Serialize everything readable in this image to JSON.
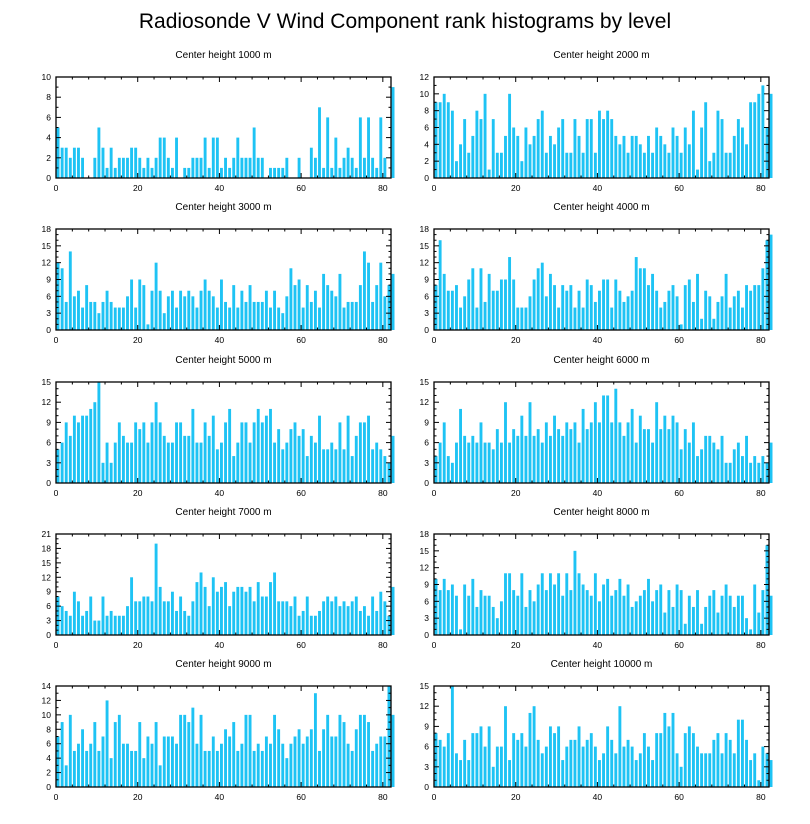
{
  "title": "Radiosonde V Wind Component rank histograms by level",
  "colors": {
    "bar": "#1ec3f4",
    "axis": "#000000",
    "background": "#ffffff"
  },
  "chart_data": [
    {
      "type": "bar",
      "title": "Center height 1000 m",
      "xlim": [
        0,
        82
      ],
      "ylim": [
        0,
        10
      ],
      "xticks": [
        0,
        20,
        40,
        60,
        80
      ],
      "yticks": [
        0,
        2,
        4,
        6,
        8,
        10
      ],
      "values": [
        5,
        3,
        3,
        2,
        3,
        3,
        2,
        0,
        0,
        2,
        5,
        3,
        1,
        3,
        1,
        2,
        2,
        2,
        3,
        3,
        2,
        1,
        2,
        1,
        2,
        4,
        4,
        2,
        1,
        4,
        0,
        1,
        1,
        2,
        2,
        2,
        4,
        1,
        4,
        4,
        1,
        2,
        1,
        2,
        4,
        2,
        2,
        2,
        5,
        2,
        2,
        0,
        1,
        1,
        1,
        1,
        2,
        0,
        0,
        2,
        0,
        0,
        3,
        2,
        7,
        1,
        6,
        1,
        4,
        1,
        2,
        3,
        2,
        1,
        6,
        2,
        6,
        2,
        1,
        6,
        2,
        0,
        9
      ]
    },
    {
      "type": "bar",
      "title": "Center height 2000 m",
      "xlim": [
        0,
        82
      ],
      "ylim": [
        0,
        12
      ],
      "xticks": [
        0,
        20,
        40,
        60,
        80
      ],
      "yticks": [
        0,
        2,
        4,
        6,
        8,
        10,
        12
      ],
      "values": [
        9,
        9,
        10,
        9,
        8,
        2,
        4,
        7,
        3,
        5,
        8,
        7,
        10,
        1,
        7,
        3,
        3,
        5,
        10,
        6,
        5,
        2,
        6,
        4,
        5,
        7,
        8,
        3,
        5,
        4,
        6,
        7,
        3,
        3,
        7,
        5,
        3,
        7,
        7,
        3,
        8,
        7,
        8,
        7,
        5,
        4,
        5,
        3,
        5,
        5,
        4,
        3,
        5,
        3,
        6,
        5,
        4,
        3,
        6,
        5,
        3,
        6,
        4,
        8,
        1,
        6,
        9,
        2,
        3,
        8,
        7,
        3,
        3,
        5,
        7,
        6,
        4,
        9,
        9,
        10,
        11,
        6,
        10
      ]
    },
    {
      "type": "bar",
      "title": "Center height 3000 m",
      "xlim": [
        0,
        82
      ],
      "ylim": [
        0,
        18
      ],
      "xticks": [
        0,
        20,
        40,
        60,
        80
      ],
      "yticks": [
        0,
        3,
        6,
        9,
        12,
        15,
        18
      ],
      "values": [
        12,
        11,
        5,
        14,
        6,
        7,
        4,
        8,
        5,
        5,
        3,
        5,
        7,
        5,
        4,
        4,
        4,
        6,
        9,
        4,
        9,
        8,
        1,
        7,
        12,
        7,
        3,
        6,
        7,
        4,
        7,
        6,
        7,
        6,
        4,
        7,
        9,
        7,
        6,
        4,
        9,
        5,
        4,
        8,
        4,
        7,
        5,
        8,
        5,
        5,
        5,
        7,
        4,
        7,
        4,
        3,
        6,
        11,
        8,
        9,
        4,
        8,
        5,
        7,
        4,
        10,
        8,
        7,
        6,
        10,
        4,
        5,
        5,
        5,
        8,
        14,
        12,
        5,
        8,
        12,
        6,
        8,
        10
      ]
    },
    {
      "type": "bar",
      "title": "Center height 4000 m",
      "xlim": [
        0,
        82
      ],
      "ylim": [
        0,
        18
      ],
      "xticks": [
        0,
        20,
        40,
        60,
        80
      ],
      "yticks": [
        0,
        3,
        6,
        9,
        12,
        15,
        18
      ],
      "values": [
        8,
        16,
        10,
        7,
        7,
        8,
        4,
        6,
        9,
        11,
        4,
        11,
        5,
        10,
        7,
        7,
        9,
        9,
        13,
        9,
        4,
        4,
        4,
        6,
        9,
        11,
        12,
        6,
        10,
        8,
        4,
        8,
        7,
        8,
        4,
        7,
        4,
        9,
        8,
        5,
        7,
        9,
        9,
        4,
        9,
        7,
        5,
        6,
        7,
        13,
        11,
        11,
        8,
        10,
        7,
        4,
        5,
        7,
        8,
        6,
        1,
        8,
        9,
        5,
        10,
        2,
        7,
        6,
        2,
        5,
        6,
        10,
        4,
        6,
        7,
        4,
        8,
        7,
        8,
        8,
        11,
        16,
        17
      ]
    },
    {
      "type": "bar",
      "title": "Center height 5000 m",
      "xlim": [
        0,
        82
      ],
      "ylim": [
        0,
        15
      ],
      "xticks": [
        0,
        20,
        40,
        60,
        80
      ],
      "yticks": [
        0,
        3,
        6,
        9,
        12,
        15
      ],
      "values": [
        5,
        6,
        9,
        7,
        10,
        9,
        10,
        10,
        11,
        12,
        15,
        3,
        6,
        3,
        6,
        9,
        7,
        6,
        6,
        9,
        8,
        9,
        6,
        9,
        12,
        9,
        7,
        6,
        6,
        9,
        9,
        7,
        7,
        11,
        6,
        6,
        9,
        7,
        10,
        5,
        6,
        9,
        11,
        4,
        6,
        9,
        9,
        6,
        9,
        11,
        9,
        10,
        11,
        6,
        8,
        5,
        6,
        8,
        9,
        7,
        8,
        4,
        7,
        6,
        10,
        5,
        5,
        6,
        5,
        9,
        5,
        10,
        4,
        7,
        9,
        9,
        10,
        5,
        6,
        5,
        4,
        3,
        7
      ]
    },
    {
      "type": "bar",
      "title": "Center height 6000 m",
      "xlim": [
        0,
        82
      ],
      "ylim": [
        0,
        15
      ],
      "xticks": [
        0,
        20,
        40,
        60,
        80
      ],
      "yticks": [
        0,
        3,
        6,
        9,
        12,
        15
      ],
      "values": [
        4,
        6,
        9,
        4,
        3,
        6,
        11,
        7,
        6,
        7,
        6,
        9,
        6,
        6,
        5,
        8,
        6,
        12,
        6,
        8,
        7,
        10,
        7,
        12,
        7,
        8,
        6,
        9,
        7,
        10,
        8,
        7,
        9,
        8,
        9,
        6,
        11,
        8,
        9,
        12,
        9,
        13,
        13,
        9,
        14,
        9,
        7,
        9,
        11,
        6,
        10,
        8,
        8,
        6,
        12,
        8,
        10,
        8,
        10,
        9,
        5,
        8,
        6,
        9,
        4,
        5,
        7,
        7,
        6,
        5,
        7,
        3,
        3,
        5,
        6,
        4,
        7,
        3,
        4,
        3,
        4,
        3,
        6
      ]
    },
    {
      "type": "bar",
      "title": "Center height 7000 m",
      "xlim": [
        0,
        82
      ],
      "ylim": [
        0,
        21
      ],
      "xticks": [
        0,
        20,
        40,
        60,
        80
      ],
      "yticks": [
        0,
        3,
        6,
        9,
        12,
        15,
        18,
        21
      ],
      "values": [
        8,
        6,
        5,
        4,
        9,
        7,
        4,
        5,
        8,
        3,
        3,
        8,
        4,
        5,
        4,
        4,
        4,
        6,
        12,
        7,
        7,
        8,
        8,
        7,
        19,
        10,
        7,
        7,
        9,
        5,
        8,
        5,
        4,
        7,
        11,
        13,
        10,
        6,
        12,
        9,
        10,
        11,
        6,
        9,
        10,
        10,
        9,
        10,
        7,
        11,
        8,
        8,
        11,
        13,
        7,
        7,
        7,
        6,
        8,
        4,
        5,
        8,
        4,
        4,
        5,
        7,
        8,
        7,
        8,
        6,
        7,
        6,
        7,
        8,
        5,
        6,
        4,
        8,
        5,
        9,
        7,
        4,
        10
      ]
    },
    {
      "type": "bar",
      "title": "Center height 8000 m",
      "xlim": [
        0,
        82
      ],
      "ylim": [
        0,
        18
      ],
      "xticks": [
        0,
        20,
        40,
        60,
        80
      ],
      "yticks": [
        0,
        3,
        6,
        9,
        12,
        15,
        18
      ],
      "values": [
        10,
        8,
        10,
        8,
        9,
        7,
        1,
        9,
        7,
        10,
        5,
        8,
        7,
        7,
        5,
        3,
        6,
        11,
        11,
        8,
        7,
        11,
        5,
        8,
        6,
        9,
        11,
        8,
        11,
        9,
        11,
        7,
        11,
        8,
        15,
        11,
        9,
        8,
        7,
        11,
        6,
        9,
        10,
        7,
        8,
        10,
        7,
        9,
        5,
        6,
        7,
        8,
        10,
        6,
        8,
        9,
        4,
        8,
        5,
        9,
        8,
        2,
        7,
        5,
        8,
        2,
        5,
        7,
        8,
        4,
        7,
        9,
        7,
        5,
        7,
        7,
        3,
        1,
        9,
        4,
        8,
        16,
        7
      ]
    },
    {
      "type": "bar",
      "title": "Center height 9000 m",
      "xlim": [
        0,
        82
      ],
      "ylim": [
        0,
        14
      ],
      "xticks": [
        0,
        20,
        40,
        60,
        80
      ],
      "yticks": [
        0,
        2,
        4,
        6,
        8,
        10,
        12,
        14
      ],
      "values": [
        7,
        9,
        3,
        10,
        5,
        6,
        8,
        5,
        6,
        9,
        5,
        7,
        12,
        4,
        9,
        10,
        6,
        6,
        5,
        5,
        9,
        4,
        7,
        6,
        9,
        3,
        7,
        7,
        7,
        6,
        10,
        10,
        9,
        11,
        6,
        10,
        5,
        5,
        7,
        5,
        6,
        8,
        7,
        9,
        5,
        6,
        10,
        10,
        5,
        6,
        5,
        7,
        6,
        10,
        8,
        6,
        4,
        6,
        7,
        8,
        6,
        7,
        8,
        13,
        5,
        8,
        10,
        7,
        7,
        10,
        9,
        6,
        5,
        8,
        10,
        10,
        9,
        5,
        6,
        7,
        7,
        14,
        10
      ]
    },
    {
      "type": "bar",
      "title": "Center height 10000 m",
      "xlim": [
        0,
        82
      ],
      "ylim": [
        0,
        15
      ],
      "xticks": [
        0,
        20,
        40,
        60,
        80
      ],
      "yticks": [
        0,
        3,
        6,
        9,
        12,
        15
      ],
      "values": [
        8,
        7,
        6,
        8,
        15,
        5,
        4,
        7,
        4,
        8,
        8,
        9,
        6,
        9,
        3,
        6,
        6,
        12,
        4,
        8,
        7,
        8,
        6,
        11,
        12,
        7,
        5,
        6,
        9,
        8,
        9,
        4,
        6,
        7,
        7,
        9,
        6,
        7,
        8,
        6,
        4,
        5,
        9,
        7,
        5,
        12,
        6,
        7,
        6,
        4,
        5,
        8,
        6,
        4,
        8,
        8,
        11,
        9,
        11,
        5,
        3,
        8,
        9,
        8,
        6,
        5,
        5,
        5,
        7,
        8,
        5,
        8,
        7,
        5,
        10,
        10,
        7,
        4,
        5,
        1,
        6,
        5,
        4
      ]
    }
  ]
}
